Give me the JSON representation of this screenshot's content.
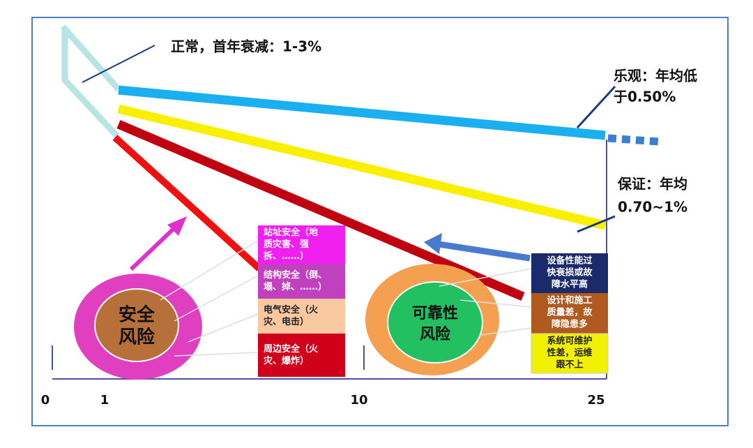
{
  "annotations": {
    "normal": "正常，首年衰减：1-3%",
    "optimistic": [
      "乐观：年均低",
      "于0.50%"
    ],
    "guaranteed": [
      "保证：年均",
      "0.70~1%"
    ]
  },
  "axis": {
    "labels": [
      "0",
      "1",
      "10",
      "25"
    ]
  },
  "circles": {
    "safety": [
      "安全",
      "风险"
    ],
    "reliability": [
      "可靠性",
      "风险"
    ]
  },
  "safety_boxes": [
    [
      "站址安全（地",
      "质灾害、强",
      "拆、……）"
    ],
    [
      "结构安全（倒、",
      "塌、掉、……）"
    ],
    [
      "电气安全（火",
      "灾、电击）"
    ],
    [
      "周边安全（火",
      "灾、爆炸）"
    ]
  ],
  "reliability_boxes": [
    [
      "设备性能过",
      "快衰损或故",
      "障水平高"
    ],
    [
      "设计和施工",
      "质量差，故",
      "障隐患多"
    ],
    [
      "系统可维护",
      "性差，运维",
      "跟不上"
    ]
  ]
}
